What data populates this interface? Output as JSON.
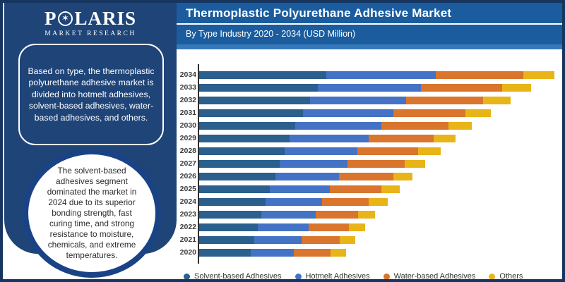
{
  "brand": {
    "logo_first": "P",
    "logo_star_icon": "✶",
    "logo_rest": "LARIS",
    "tagline": "MARKET RESEARCH"
  },
  "header": {
    "title": "Thermoplastic Polyurethane Adhesive Market",
    "subtitle": "By Type Industry 2020 - 2034 (USD Million)"
  },
  "sidebar": {
    "info_box_text": "Based on type, the thermoplastic polyurethane adhesive market is divided into hotmelt adhesives, solvent-based adhesives, water-based adhesives, and others.",
    "circle_text": "The solvent-based adhesives segment dominated the market in 2024 due to its superior bonding strength, fast curing time, and strong resistance to moisture, chemicals, and extreme temperatures."
  },
  "colors": {
    "border_navy": "#16355F",
    "sidebar_navy": "#1F4478",
    "circle_ring": "#1A4386",
    "header_blue": "#1A5C9E",
    "header_strip": "#3679B9",
    "solvent": "#2B5F8E",
    "hotmelt": "#4472C4",
    "water": "#D9752C",
    "others": "#E9B418"
  },
  "legend": [
    {
      "label": "Solvent-based Adhesives",
      "color": "#2B5F8E"
    },
    {
      "label": "Hotmelt Adhesives",
      "color": "#4472C4"
    },
    {
      "label": "Water-based Adhesives",
      "color": "#D9752C"
    },
    {
      "label": "Others",
      "color": "#E9B418"
    }
  ],
  "chart_data": {
    "type": "bar",
    "orientation": "horizontal",
    "stacked": true,
    "title": "Thermoplastic Polyurethane Adhesive Market",
    "subtitle": "By Type Industry 2020 - 2034 (USD Million)",
    "xlabel": "",
    "ylabel": "",
    "units": "USD Million (x-axis values not labeled in figure; series values are relative estimates measured from bar lengths)",
    "grid": false,
    "legend_position": "bottom",
    "categories": [
      2020,
      2021,
      2022,
      2023,
      2024,
      2025,
      2026,
      2027,
      2028,
      2029,
      2030,
      2031,
      2032,
      2033,
      2034
    ],
    "y_axis_order_top_to_bottom": [
      2034,
      2033,
      2032,
      2031,
      2030,
      2029,
      2028,
      2027,
      2026,
      2025,
      2024,
      2023,
      2022,
      2021,
      2020
    ],
    "series": [
      {
        "name": "Solvent-based Adhesives",
        "color": "#2B5F8E",
        "values": [
          73,
          78,
          83,
          88,
          94,
          100,
          108,
          114,
          121,
          129,
          137,
          148,
          158,
          169,
          181
        ]
      },
      {
        "name": "Hotmelt Adhesives",
        "color": "#4472C4",
        "values": [
          62,
          68,
          73,
          78,
          81,
          86,
          91,
          97,
          104,
          112,
          122,
          128,
          136,
          146,
          155
        ]
      },
      {
        "name": "Water-based Adhesives",
        "color": "#D9752C",
        "values": [
          52,
          54,
          57,
          60,
          66,
          73,
          77,
          81,
          86,
          92,
          95,
          103,
          110,
          116,
          125
        ]
      },
      {
        "name": "Others",
        "color": "#E9B418",
        "values": [
          22,
          22,
          23,
          24,
          27,
          26,
          27,
          29,
          32,
          31,
          34,
          36,
          39,
          41,
          44
        ]
      }
    ],
    "totals_by_year": [
      209,
      222,
      236,
      250,
      268,
      285,
      303,
      321,
      343,
      364,
      388,
      415,
      443,
      472,
      505
    ]
  }
}
